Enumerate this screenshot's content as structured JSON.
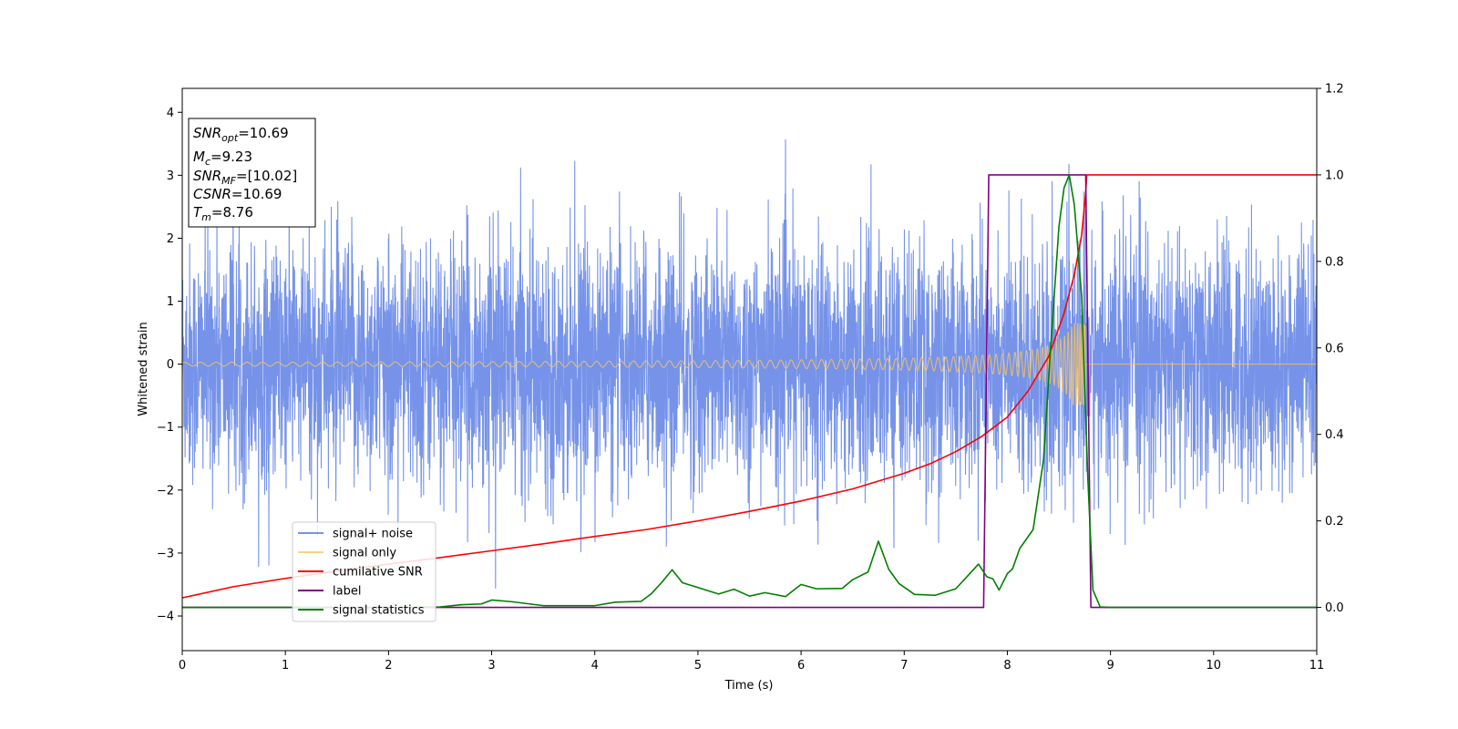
{
  "chart_data": {
    "type": "line",
    "xlabel": "Time (s)",
    "ylabel": "Whitened strain",
    "xlim": [
      0,
      11
    ],
    "ylim_left": [
      -4.55,
      4.38
    ],
    "ylim_right": [
      -0.1,
      1.2
    ],
    "x_ticks": [
      0,
      1,
      2,
      3,
      4,
      5,
      6,
      7,
      8,
      9,
      10,
      11
    ],
    "y_ticks_left": [
      -4,
      -3,
      -2,
      -1,
      0,
      1,
      2,
      3,
      4
    ],
    "y_ticks_right": [
      0.0,
      0.2,
      0.4,
      0.6,
      0.8,
      1.0,
      1.2
    ],
    "x_tick_labels": [
      "0",
      "1",
      "2",
      "3",
      "4",
      "5",
      "6",
      "7",
      "8",
      "9",
      "10",
      "11"
    ],
    "y_tick_labels_left": [
      "−4",
      "−3",
      "−2",
      "−1",
      "0",
      "1",
      "2",
      "3",
      "4"
    ],
    "y_tick_labels_right": [
      "0.0",
      "0.2",
      "0.4",
      "0.6",
      "0.8",
      "1.0",
      "1.2"
    ],
    "legend_position": "lower-left",
    "grid": false,
    "annotation_box": {
      "position": "upper-left",
      "lines": [
        {
          "base": "SNR",
          "sub": "opt",
          "rest": "=10.69"
        },
        {
          "base": "M",
          "sub": "c",
          "rest": "=9.23"
        },
        {
          "base": "SNR",
          "sub": "MF",
          "rest": "=[10.02]"
        },
        {
          "base": "CSNR",
          "sub": "",
          "rest": "=10.69"
        },
        {
          "base": "T",
          "sub": "m",
          "rest": "=8.76"
        }
      ]
    },
    "series": [
      {
        "name": "signal+ noise",
        "axis": "left",
        "color": "#4169e1",
        "kind": "noise",
        "description_values": {
          "sigma": 0.95,
          "x_start": 0,
          "x_end": 11
        }
      },
      {
        "name": "signal only",
        "axis": "left",
        "color": "#f5c265",
        "kind": "chirp",
        "description_values": {
          "amp_start": 0.03,
          "amp_peak": 0.65,
          "merger_time": 8.76
        }
      },
      {
        "name": "cumilative SNR",
        "axis": "right",
        "color": "#ff0000",
        "x": [
          0,
          0.5,
          1,
          1.5,
          2,
          2.5,
          3,
          3.5,
          4,
          4.5,
          5,
          5.5,
          6,
          6.5,
          7,
          7.25,
          7.5,
          7.75,
          8,
          8.2,
          8.4,
          8.55,
          8.65,
          8.72,
          8.76,
          8.77,
          11
        ],
        "y": [
          0.022,
          0.048,
          0.067,
          0.084,
          0.1,
          0.115,
          0.131,
          0.147,
          0.164,
          0.18,
          0.2,
          0.222,
          0.246,
          0.274,
          0.31,
          0.332,
          0.36,
          0.395,
          0.44,
          0.5,
          0.58,
          0.68,
          0.77,
          0.86,
          0.96,
          1.0,
          1.0
        ]
      },
      {
        "name": "label",
        "axis": "right",
        "color": "#800080",
        "x": [
          0,
          7.77,
          7.82,
          8.76,
          8.81,
          11
        ],
        "y": [
          0,
          0,
          1,
          1,
          0,
          0
        ]
      },
      {
        "name": "signal statistics",
        "axis": "right",
        "color": "#008000",
        "x": [
          0,
          0.5,
          1,
          1.5,
          2,
          2.5,
          2.7,
          2.9,
          3.0,
          3.2,
          3.5,
          4.0,
          4.2,
          4.45,
          4.55,
          4.65,
          4.75,
          4.85,
          5.0,
          5.2,
          5.35,
          5.5,
          5.65,
          5.85,
          6.0,
          6.15,
          6.4,
          6.5,
          6.65,
          6.75,
          6.85,
          6.95,
          7.1,
          7.3,
          7.5,
          7.62,
          7.72,
          7.8,
          7.86,
          7.92,
          8.0,
          8.05,
          8.12,
          8.25,
          8.35,
          8.42,
          8.5,
          8.55,
          8.6,
          8.65,
          8.72,
          8.78,
          8.83,
          8.9,
          9.0,
          10,
          11
        ],
        "y": [
          0.0,
          0.0,
          0.0,
          0.0,
          0.0,
          0.001,
          0.006,
          0.008,
          0.017,
          0.013,
          0.004,
          0.004,
          0.012,
          0.014,
          0.032,
          0.058,
          0.087,
          0.057,
          0.046,
          0.031,
          0.042,
          0.026,
          0.034,
          0.025,
          0.053,
          0.043,
          0.044,
          0.064,
          0.082,
          0.153,
          0.088,
          0.055,
          0.03,
          0.028,
          0.043,
          0.074,
          0.1,
          0.071,
          0.066,
          0.04,
          0.078,
          0.089,
          0.136,
          0.18,
          0.34,
          0.6,
          0.88,
          0.97,
          1.0,
          0.93,
          0.72,
          0.3,
          0.04,
          0.001,
          0.0,
          0.0,
          0.0
        ]
      }
    ]
  }
}
